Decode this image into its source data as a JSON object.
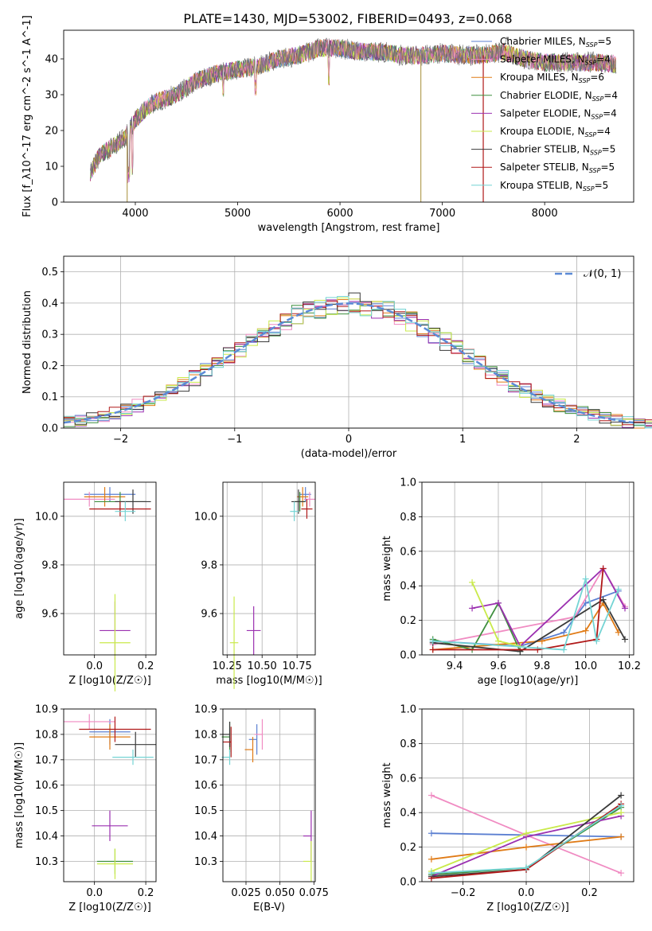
{
  "figure": {
    "title": "PLATE=1430, MJD=53002, FIBERID=0493, z=0.068"
  },
  "colors": {
    "models": [
      "#5b7fd1",
      "#f08bc2",
      "#e07b16",
      "#3f8f3f",
      "#9b30b0",
      "#c9ea4a",
      "#3a3a3a",
      "#b01818",
      "#74d4d4"
    ]
  },
  "chart_data": [
    {
      "id": "spectrum",
      "type": "line",
      "xlabel": "wavelength [Angstrom, rest frame]",
      "ylabel": "Flux [f_λ10^-17 erg cm^-2 s^-1 A^-1]",
      "xlim": [
        3300,
        8870
      ],
      "ylim": [
        0,
        48
      ],
      "xticks": [
        4000,
        5000,
        6000,
        7000,
        8000
      ],
      "yticks": [
        0,
        10,
        20,
        30,
        40
      ],
      "legend": "top-right",
      "legend_entries": [
        {
          "label": "Chabrier MILES, N",
          "nssp": "=5"
        },
        {
          "label": "Salpeter MILES, N",
          "nssp": "=4"
        },
        {
          "label": "Kroupa MILES, N",
          "nssp": "=6"
        },
        {
          "label": "Chabrier ELODIE, N",
          "nssp": "=4"
        },
        {
          "label": "Salpeter ELODIE, N",
          "nssp": "=4"
        },
        {
          "label": "Kroupa ELODIE, N",
          "nssp": "=4"
        },
        {
          "label": "Chabrier STELIB, N",
          "nssp": "=5"
        },
        {
          "label": "Salpeter STELIB, N",
          "nssp": "=5"
        },
        {
          "label": "Kroupa STELIB, N",
          "nssp": "=5"
        }
      ],
      "continuum": [
        [
          3560,
          8
        ],
        [
          3650,
          13
        ],
        [
          3800,
          16
        ],
        [
          3900,
          18
        ],
        [
          4000,
          23
        ],
        [
          4100,
          26
        ],
        [
          4200,
          28
        ],
        [
          4300,
          29
        ],
        [
          4400,
          30
        ],
        [
          4600,
          34
        ],
        [
          4800,
          36
        ],
        [
          5000,
          37
        ],
        [
          5200,
          38
        ],
        [
          5400,
          40
        ],
        [
          5600,
          41
        ],
        [
          5800,
          43
        ],
        [
          6000,
          43
        ],
        [
          6200,
          42
        ],
        [
          6400,
          42
        ],
        [
          6600,
          41
        ],
        [
          6800,
          41
        ],
        [
          7000,
          41.5
        ],
        [
          7200,
          41
        ],
        [
          7400,
          41
        ],
        [
          7600,
          42
        ],
        [
          7800,
          40
        ],
        [
          8000,
          39
        ],
        [
          8200,
          39
        ],
        [
          8500,
          39
        ],
        [
          8700,
          38.5
        ]
      ],
      "spikes": [
        3920,
        6790,
        7400
      ]
    },
    {
      "id": "residuals",
      "type": "histogram",
      "xlabel": "(data-model)/error",
      "ylabel": "Normed distribution",
      "xlim": [
        -2.5,
        2.5
      ],
      "ylim": [
        0,
        0.55
      ],
      "xticks": [
        -2,
        -1,
        0,
        1,
        2
      ],
      "yticks": [
        0.0,
        0.1,
        0.2,
        0.3,
        0.4,
        0.5
      ],
      "grid": true,
      "legend": "top-right",
      "legend_label": "𝒩(0, 1)",
      "bin_width": 0.1,
      "base_values": [
        0.02,
        0.025,
        0.03,
        0.035,
        0.04,
        0.05,
        0.055,
        0.06,
        0.065,
        0.075,
        0.09,
        0.1,
        0.115,
        0.13,
        0.15,
        0.165,
        0.19,
        0.21,
        0.23,
        0.25,
        0.27,
        0.3,
        0.32,
        0.34,
        0.36,
        0.38,
        0.4,
        0.41,
        0.42,
        0.42,
        0.43,
        0.42,
        0.41,
        0.41,
        0.4,
        0.4,
        0.41,
        0.43,
        0.44,
        0.43,
        0.42,
        0.41,
        0.4,
        0.39,
        0.37,
        0.35,
        0.34,
        0.32,
        0.3,
        0.28,
        0.26,
        0.24,
        0.21,
        0.19,
        0.17,
        0.15,
        0.13,
        0.115,
        0.1,
        0.09,
        0.08,
        0.07,
        0.065,
        0.06,
        0.055,
        0.05,
        0.045,
        0.04,
        0.035,
        0.03
      ]
    },
    {
      "id": "Z-age",
      "type": "scatter",
      "xlabel": "Z [log10(Z/Z☉)]",
      "ylabel": "age [log10(age/yr)]",
      "xlim": [
        -0.12,
        0.24
      ],
      "ylim": [
        9.43,
        10.14
      ],
      "xticks": [
        0.0,
        0.2
      ],
      "yticks": [
        9.6,
        9.8,
        10.0
      ],
      "points": [
        {
          "x": 0.06,
          "y": 10.09,
          "ex": 0.1,
          "ey": 0.03
        },
        {
          "x": -0.02,
          "y": 10.07,
          "ex": 0.1,
          "ey": 0.03
        },
        {
          "x": 0.04,
          "y": 10.08,
          "ex": 0.08,
          "ey": 0.04
        },
        {
          "x": 0.1,
          "y": 10.06,
          "ex": 0.1,
          "ey": 0.04
        },
        {
          "x": 0.08,
          "y": 9.53,
          "ex": 0.06,
          "ey": 0.12
        },
        {
          "x": 0.08,
          "y": 9.48,
          "ex": 0.06,
          "ey": 0.2
        },
        {
          "x": 0.15,
          "y": 10.06,
          "ex": 0.07,
          "ey": 0.05
        },
        {
          "x": 0.1,
          "y": 10.03,
          "ex": 0.12,
          "ey": 0.03
        },
        {
          "x": 0.12,
          "y": 10.02,
          "ex": 0.04,
          "ey": 0.04
        }
      ]
    },
    {
      "id": "mass-age",
      "type": "scatter",
      "xlabel": "mass [log10(M/M☉)]",
      "ylabel": "",
      "xlim": [
        10.22,
        10.88
      ],
      "ylim": [
        9.43,
        10.14
      ],
      "xticks": [
        10.25,
        10.5,
        10.75
      ],
      "yticks": [
        9.6,
        9.8,
        10.0
      ],
      "points": [
        {
          "x": 10.81,
          "y": 10.09,
          "ex": 0.04,
          "ey": 0.03
        },
        {
          "x": 10.84,
          "y": 10.07,
          "ex": 0.04,
          "ey": 0.03
        },
        {
          "x": 10.79,
          "y": 10.08,
          "ex": 0.04,
          "ey": 0.04
        },
        {
          "x": 10.77,
          "y": 10.06,
          "ex": 0.04,
          "ey": 0.04
        },
        {
          "x": 10.44,
          "y": 9.53,
          "ex": 0.05,
          "ey": 0.1
        },
        {
          "x": 10.3,
          "y": 9.48,
          "ex": 0.03,
          "ey": 0.19
        },
        {
          "x": 10.76,
          "y": 10.06,
          "ex": 0.05,
          "ey": 0.05
        },
        {
          "x": 10.82,
          "y": 10.03,
          "ex": 0.04,
          "ey": 0.04
        },
        {
          "x": 10.73,
          "y": 10.02,
          "ex": 0.03,
          "ey": 0.04
        }
      ]
    },
    {
      "id": "age-weight",
      "type": "line",
      "xlabel": "age [log10(age/yr)]",
      "ylabel": "mass weight",
      "xlim": [
        9.25,
        10.22
      ],
      "ylim": [
        0,
        1.0
      ],
      "xticks": [
        9.4,
        9.6,
        9.8,
        10.0,
        10.2
      ],
      "yticks": [
        0.0,
        0.2,
        0.4,
        0.6,
        0.8,
        1.0
      ],
      "grid": true,
      "series": [
        {
          "x": [
            9.3,
            9.7,
            9.9,
            10.0,
            10.15
          ],
          "y": [
            0.08,
            0.05,
            0.13,
            0.3,
            0.37
          ]
        },
        {
          "x": [
            9.3,
            9.95,
            10.08,
            10.18
          ],
          "y": [
            0.06,
            0.22,
            0.5,
            0.28
          ]
        },
        {
          "x": [
            9.3,
            9.8,
            10.0,
            10.08,
            10.15
          ],
          "y": [
            0.03,
            0.08,
            0.14,
            0.3,
            0.13
          ]
        },
        {
          "x": [
            9.3,
            9.48,
            9.6,
            9.7
          ],
          "y": [
            0.09,
            0.03,
            0.3,
            0.02
          ]
        },
        {
          "x": [
            9.48,
            9.6,
            9.7,
            10.08,
            10.18
          ],
          "y": [
            0.27,
            0.3,
            0.05,
            0.5,
            0.27
          ]
        },
        {
          "x": [
            9.48,
            9.6,
            9.7
          ],
          "y": [
            0.42,
            0.08,
            0.05
          ]
        },
        {
          "x": [
            9.3,
            9.7,
            10.08,
            10.18
          ],
          "y": [
            0.07,
            0.02,
            0.32,
            0.09
          ]
        },
        {
          "x": [
            9.3,
            9.78,
            10.05,
            10.08
          ],
          "y": [
            0.03,
            0.03,
            0.09,
            0.5
          ]
        },
        {
          "x": [
            9.3,
            9.9,
            10.0,
            10.05,
            10.15
          ],
          "y": [
            0.08,
            0.03,
            0.44,
            0.08,
            0.38
          ]
        }
      ]
    },
    {
      "id": "Z-mass",
      "type": "scatter",
      "xlabel": "Z [log10(Z/Z☉)]",
      "ylabel": "mass [log10(M/M☉)]",
      "xlim": [
        -0.12,
        0.24
      ],
      "ylim": [
        10.22,
        10.9
      ],
      "xticks": [
        0.0,
        0.2
      ],
      "yticks": [
        10.3,
        10.4,
        10.5,
        10.6,
        10.7,
        10.8,
        10.9
      ],
      "points": [
        {
          "x": 0.06,
          "y": 10.81,
          "ex": 0.08,
          "ey": 0.05
        },
        {
          "x": -0.02,
          "y": 10.85,
          "ex": 0.1,
          "ey": 0.03
        },
        {
          "x": 0.06,
          "y": 10.79,
          "ex": 0.08,
          "ey": 0.05
        },
        {
          "x": 0.08,
          "y": 10.3,
          "ex": 0.07,
          "ey": 0.05
        },
        {
          "x": 0.06,
          "y": 10.44,
          "ex": 0.07,
          "ey": 0.06
        },
        {
          "x": 0.08,
          "y": 10.29,
          "ex": 0.07,
          "ey": 0.06
        },
        {
          "x": 0.16,
          "y": 10.76,
          "ex": 0.08,
          "ey": 0.05
        },
        {
          "x": 0.08,
          "y": 10.82,
          "ex": 0.14,
          "ey": 0.05
        },
        {
          "x": 0.15,
          "y": 10.71,
          "ex": 0.08,
          "ey": 0.03
        }
      ]
    },
    {
      "id": "ebv-mass",
      "type": "scatter",
      "xlabel": "E(B-V)",
      "ylabel": "",
      "xlim": [
        0.008,
        0.076
      ],
      "ylim": [
        10.22,
        10.9
      ],
      "xticks": [
        0.025,
        0.05,
        0.075
      ],
      "yticks": [
        10.3,
        10.4,
        10.5,
        10.6,
        10.7,
        10.8,
        10.9
      ],
      "points": [
        {
          "x": 0.033,
          "y": 10.78,
          "ex": 0.0,
          "ey": 0.06
        },
        {
          "x": 0.037,
          "y": 10.8,
          "ex": 0.0,
          "ey": 0.06
        },
        {
          "x": 0.03,
          "y": 10.74,
          "ex": 0.0,
          "ey": 0.05
        },
        {
          "x": 0.013,
          "y": 10.79,
          "ex": 0.0,
          "ey": 0.06
        },
        {
          "x": 0.073,
          "y": 10.4,
          "ex": 0.0,
          "ey": 0.1
        },
        {
          "x": 0.073,
          "y": 10.3,
          "ex": 0.0,
          "ey": 0.08
        },
        {
          "x": 0.013,
          "y": 10.8,
          "ex": 0.0,
          "ey": 0.05
        },
        {
          "x": 0.014,
          "y": 10.77,
          "ex": 0.0,
          "ey": 0.06
        },
        {
          "x": 0.013,
          "y": 10.71,
          "ex": 0.0,
          "ey": 0.03
        }
      ]
    },
    {
      "id": "Z-weight",
      "type": "line",
      "xlabel": "Z [log10(Z/Z☉)]",
      "ylabel": "mass weight",
      "xlim": [
        -0.33,
        0.34
      ],
      "ylim": [
        0,
        1.0
      ],
      "xticks": [
        -0.2,
        0.0,
        0.2
      ],
      "yticks": [
        0.0,
        0.2,
        0.4,
        0.6,
        0.8,
        1.0
      ],
      "grid": true,
      "series": [
        {
          "x": [
            -0.3,
            0.0,
            0.3
          ],
          "y": [
            0.28,
            0.27,
            0.26
          ]
        },
        {
          "x": [
            -0.3,
            0.0,
            0.3
          ],
          "y": [
            0.5,
            0.27,
            0.05
          ]
        },
        {
          "x": [
            -0.3,
            0.0,
            0.3
          ],
          "y": [
            0.13,
            0.2,
            0.26
          ]
        },
        {
          "x": [
            -0.3,
            0.0,
            0.3
          ],
          "y": [
            0.04,
            0.08,
            0.43
          ]
        },
        {
          "x": [
            -0.3,
            0.0,
            0.3
          ],
          "y": [
            0.03,
            0.26,
            0.38
          ]
        },
        {
          "x": [
            -0.3,
            0.0,
            0.3
          ],
          "y": [
            0.06,
            0.28,
            0.4
          ]
        },
        {
          "x": [
            -0.3,
            0.0,
            0.3
          ],
          "y": [
            0.03,
            0.07,
            0.5
          ]
        },
        {
          "x": [
            -0.3,
            0.0,
            0.3
          ],
          "y": [
            0.02,
            0.07,
            0.45
          ]
        },
        {
          "x": [
            -0.3,
            0.0,
            0.3
          ],
          "y": [
            0.05,
            0.08,
            0.44
          ]
        }
      ]
    }
  ]
}
